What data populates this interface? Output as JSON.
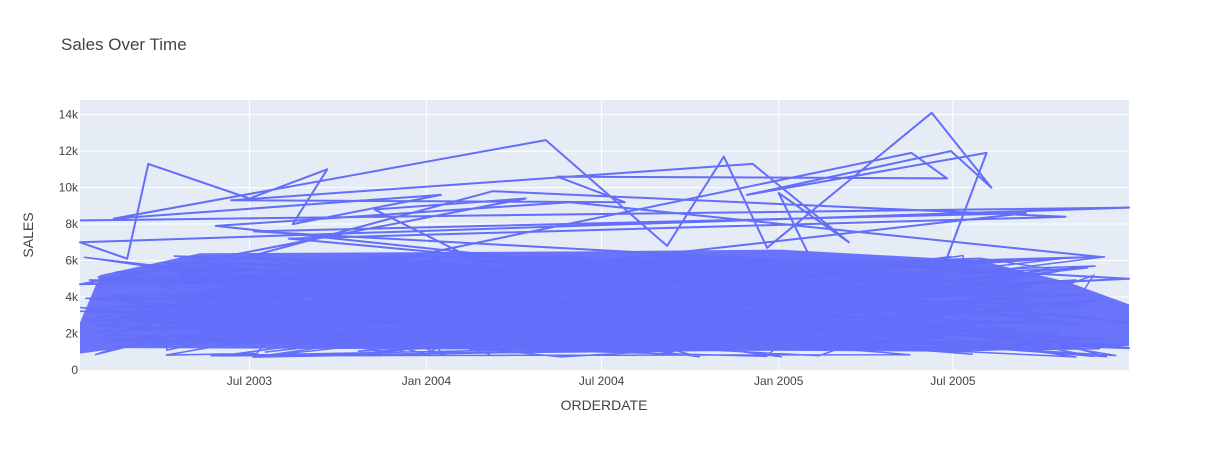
{
  "chart_data": {
    "type": "line",
    "title": "Sales Over Time",
    "xlabel": "ORDERDATE",
    "ylabel": "SALES",
    "x_range": [
      "2003-01-06",
      "2005-12-31"
    ],
    "ylim": [
      0,
      14800
    ],
    "x_tick_labels": [
      {
        "date": "2003-07-01",
        "label": "Jul 2003"
      },
      {
        "date": "2004-01-01",
        "label": "Jan 2004"
      },
      {
        "date": "2004-07-01",
        "label": "Jul 2004"
      },
      {
        "date": "2005-01-01",
        "label": "Jan 2005"
      },
      {
        "date": "2005-07-01",
        "label": "Jul 2005"
      }
    ],
    "y_ticks": [
      {
        "value": 0,
        "label": "0"
      },
      {
        "value": 2000,
        "label": "2k"
      },
      {
        "value": 4000,
        "label": "4k"
      },
      {
        "value": 6000,
        "label": "6k"
      },
      {
        "value": 8000,
        "label": "8k"
      },
      {
        "value": 10000,
        "label": "10k"
      },
      {
        "value": 12000,
        "label": "12k"
      },
      {
        "value": 14000,
        "label": "14k"
      }
    ],
    "grid": true,
    "series": [
      {
        "color": "#636efa",
        "points": [
          [
            "2003-01-06",
            8200
          ],
          [
            "2005-12-31",
            8900
          ],
          [
            "2003-01-06",
            7000
          ],
          [
            "2003-02-24",
            6100
          ],
          [
            "2003-03-18",
            11300
          ],
          [
            "2003-07-01",
            9400
          ],
          [
            "2003-09-20",
            11000
          ],
          [
            "2003-08-15",
            8000
          ],
          [
            "2004-01-16",
            9600
          ],
          [
            "2003-02-10",
            8300
          ],
          [
            "2004-05-04",
            12600
          ],
          [
            "2004-09-07",
            6800
          ],
          [
            "2004-11-05",
            11700
          ],
          [
            "2004-12-20",
            6700
          ],
          [
            "2005-06-09",
            14100
          ],
          [
            "2005-08-10",
            10000
          ],
          [
            "2005-06-29",
            12000
          ],
          [
            "2004-11-29",
            9600
          ],
          [
            "2005-08-05",
            11900
          ],
          [
            "2005-06-13",
            4500
          ],
          [
            "2005-12-31",
            5000
          ],
          [
            "2003-07-06",
            7600
          ],
          [
            "2005-09-15",
            8600
          ],
          [
            "2003-03-05",
            3100
          ],
          [
            "2005-05-19",
            11900
          ],
          [
            "2005-06-25",
            10500
          ],
          [
            "2004-05-16",
            10600
          ],
          [
            "2004-07-25",
            9200
          ],
          [
            "2003-06-12",
            9300
          ],
          [
            "2004-12-05",
            11300
          ],
          [
            "2005-03-15",
            7000
          ],
          [
            "2005-01-01",
            9700
          ],
          [
            "2005-02-18",
            4500
          ],
          [
            "2003-08-11",
            7200
          ],
          [
            "2005-10-26",
            8400
          ],
          [
            "2004-03-10",
            9800
          ],
          [
            "2003-04-20",
            5200
          ],
          [
            "2005-12-31",
            1200
          ],
          [
            "2004-07-20",
            2100
          ],
          [
            "2003-11-08",
            8800
          ],
          [
            "2004-04-13",
            9400
          ],
          [
            "2003-01-06",
            4700
          ],
          [
            "2005-12-01",
            6200
          ],
          [
            "2004-05-29",
            9200
          ],
          [
            "2003-05-27",
            7900
          ],
          [
            "2005-12-31",
            2600
          ]
        ],
        "band": {
          "lower": 700,
          "upper": 6300
        }
      }
    ]
  }
}
